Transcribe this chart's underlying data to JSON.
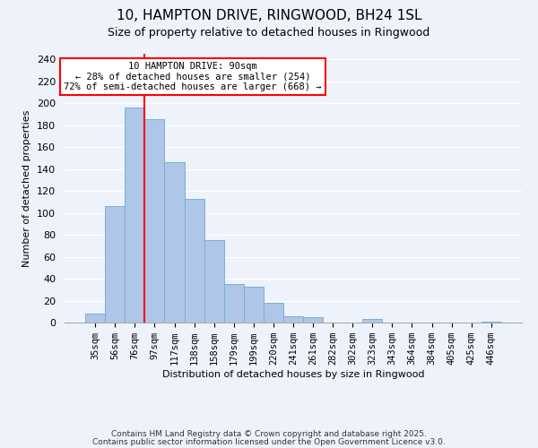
{
  "title": "10, HAMPTON DRIVE, RINGWOOD, BH24 1SL",
  "subtitle": "Size of property relative to detached houses in Ringwood",
  "xlabel": "Distribution of detached houses by size in Ringwood",
  "ylabel": "Number of detached properties",
  "bar_labels": [
    "35sqm",
    "56sqm",
    "76sqm",
    "97sqm",
    "117sqm",
    "138sqm",
    "158sqm",
    "179sqm",
    "199sqm",
    "220sqm",
    "241sqm",
    "261sqm",
    "282sqm",
    "302sqm",
    "323sqm",
    "343sqm",
    "364sqm",
    "384sqm",
    "405sqm",
    "425sqm",
    "446sqm"
  ],
  "bar_heights": [
    8,
    106,
    196,
    185,
    146,
    113,
    75,
    35,
    33,
    18,
    6,
    5,
    0,
    0,
    3,
    0,
    0,
    0,
    0,
    0,
    1
  ],
  "bar_color": "#aec6e8",
  "bar_edge_color": "#7aafd4",
  "vline_color": "red",
  "vline_x_index": 3,
  "annotation_title": "10 HAMPTON DRIVE: 90sqm",
  "annotation_line1": "← 28% of detached houses are smaller (254)",
  "annotation_line2": "72% of semi-detached houses are larger (668) →",
  "annotation_box_color": "#ffffff",
  "annotation_box_edge": "red",
  "ylim": [
    0,
    245
  ],
  "yticks": [
    0,
    20,
    40,
    60,
    80,
    100,
    120,
    140,
    160,
    180,
    200,
    220,
    240
  ],
  "footer1": "Contains HM Land Registry data © Crown copyright and database right 2025.",
  "footer2": "Contains public sector information licensed under the Open Government Licence v3.0.",
  "background_color": "#eef2fb",
  "grid_color": "#ffffff",
  "title_fontsize": 11,
  "subtitle_fontsize": 9,
  "axis_label_fontsize": 8,
  "tick_fontsize": 7.5,
  "footer_fontsize": 6.5
}
